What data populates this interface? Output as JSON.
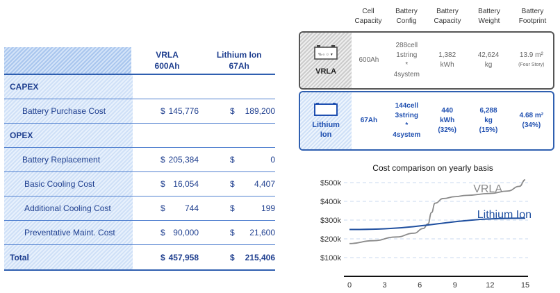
{
  "cost_table": {
    "headers": [
      {
        "line1": "VRLA",
        "line2": "600Ah"
      },
      {
        "line1": "Lithium Ion",
        "line2": "67Ah"
      }
    ],
    "rows": [
      {
        "label": "CAPEX",
        "type": "section"
      },
      {
        "label": "Battery Purchase Cost",
        "type": "item",
        "vrla_cur": "$",
        "vrla": "145,776",
        "li_cur": "$",
        "li": "189,200"
      },
      {
        "label": "OPEX",
        "type": "section"
      },
      {
        "label": "Battery Replacement",
        "type": "item",
        "vrla_cur": "$",
        "vrla": "205,384",
        "li_cur": "$",
        "li": "0"
      },
      {
        "label": "Basic Cooling Cost",
        "type": "item",
        "vrla_cur": "$",
        "vrla": "16,054",
        "li_cur": "$",
        "li": "4,407"
      },
      {
        "label": "Additional Cooling Cost",
        "type": "item",
        "vrla_cur": "$",
        "vrla": "744",
        "li_cur": "$",
        "li": "199"
      },
      {
        "label": "Preventative Maint. Cost",
        "type": "item",
        "vrla_cur": "$",
        "vrla": "90,000",
        "li_cur": "$",
        "li": "21,600"
      },
      {
        "label": "Total",
        "type": "total",
        "vrla_cur": "$",
        "vrla": "457,958",
        "li_cur": "$",
        "li": "215,406"
      }
    ]
  },
  "spec_table": {
    "headers": [
      [
        "Cell",
        "Capacity"
      ],
      [
        "Battery",
        "Config"
      ],
      [
        "Battery",
        "Capacity"
      ],
      [
        "Battery",
        "Weight"
      ],
      [
        "Battery",
        "Footprint"
      ]
    ],
    "vrla": {
      "name": "VRLA",
      "cell": "600Ah",
      "config": [
        "288cell",
        "1string",
        "*",
        "4system"
      ],
      "capacity": [
        "1,382",
        "kWh"
      ],
      "weight": [
        "42,624",
        "kg"
      ],
      "footprint": "13.9 m²",
      "footprint_note": "(Four Story)"
    },
    "li": {
      "name1": "Lithium",
      "name2": "Ion",
      "cell": "67Ah",
      "config": [
        "144cell",
        "3string",
        "*",
        "4system"
      ],
      "capacity": [
        "440",
        "kWh",
        "(32%)"
      ],
      "weight": [
        "6,288",
        "kg",
        "(15%)"
      ],
      "footprint": "4.68 m²",
      "footprint_note": "(34%)"
    }
  },
  "chart_data": {
    "type": "line",
    "title": "Cost comparison on yearly basis",
    "x_ticks": [
      0,
      3,
      6,
      9,
      12,
      15
    ],
    "y_ticks": [
      "$100k",
      "$200k",
      "$300k",
      "$400k",
      "$500k"
    ],
    "ylim": [
      0,
      500
    ],
    "xlim": [
      0,
      15
    ],
    "series": [
      {
        "name": "VRLA",
        "color": "#8a8a8a",
        "x": [
          0,
          2,
          4,
          5.5,
          6.3,
          6.7,
          7.0,
          7.3,
          8,
          9,
          10,
          12,
          13.5,
          14.5,
          15
        ],
        "y": [
          175,
          190,
          210,
          230,
          255,
          280,
          340,
          390,
          415,
          425,
          432,
          442,
          455,
          480,
          515
        ]
      },
      {
        "name": "Lithium Ion",
        "color": "#1f4f9f",
        "x": [
          0,
          15
        ],
        "y": [
          250,
          310
        ]
      }
    ]
  }
}
